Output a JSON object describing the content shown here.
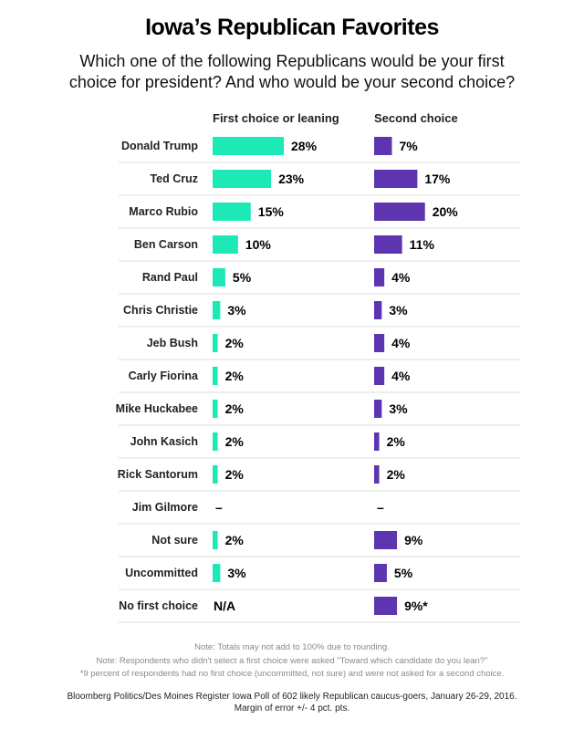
{
  "title": "Iowa’s Republican Favorites",
  "subtitle": "Which one of the following Republicans would be your first choice for president? And who would be your second choice?",
  "column_headers": {
    "first": "First choice or leaning",
    "second": "Second choice"
  },
  "colors": {
    "first": "#1de9b6",
    "second": "#5e35b1",
    "divider": "#dddddd"
  },
  "chart_data": {
    "type": "bar",
    "categories": [
      "Donald Trump",
      "Ted Cruz",
      "Marco Rubio",
      "Ben Carson",
      "Rand Paul",
      "Chris Christie",
      "Jeb Bush",
      "Carly Fiorina",
      "Mike Huckabee",
      "John Kasich",
      "Rick Santorum",
      "Jim Gilmore",
      "Not sure",
      "Uncommitted",
      "No first choice"
    ],
    "series": [
      {
        "name": "First choice or leaning",
        "values": [
          28,
          23,
          15,
          10,
          5,
          3,
          2,
          2,
          2,
          2,
          2,
          null,
          2,
          3,
          null
        ],
        "labels": [
          "28%",
          "23%",
          "15%",
          "10%",
          "5%",
          "3%",
          "2%",
          "2%",
          "2%",
          "2%",
          "2%",
          "–",
          "2%",
          "3%",
          "N/A"
        ]
      },
      {
        "name": "Second choice",
        "values": [
          7,
          17,
          20,
          11,
          4,
          3,
          4,
          4,
          3,
          2,
          2,
          null,
          9,
          5,
          9
        ],
        "labels": [
          "7%",
          "17%",
          "20%",
          "11%",
          "4%",
          "3%",
          "4%",
          "4%",
          "3%",
          "2%",
          "2%",
          "–",
          "9%",
          "5%",
          "9%*"
        ]
      }
    ],
    "xlim": [
      0,
      28
    ]
  },
  "notes": [
    "Note: Totals may not add to 100% due to rounding.",
    "Note: Respondents who didn't select a first choice were asked \"Toward which candidate do you lean?\"",
    "*9 percent of respondents had no first choice (uncommitted, not sure) and were not asked for a second choice."
  ],
  "source": [
    "Bloomberg Politics/Des Moines Register Iowa Poll of 602 likely Republican caucus-goers, January 26-29, 2016.",
    "Margin of error +/- 4 pct. pts."
  ]
}
